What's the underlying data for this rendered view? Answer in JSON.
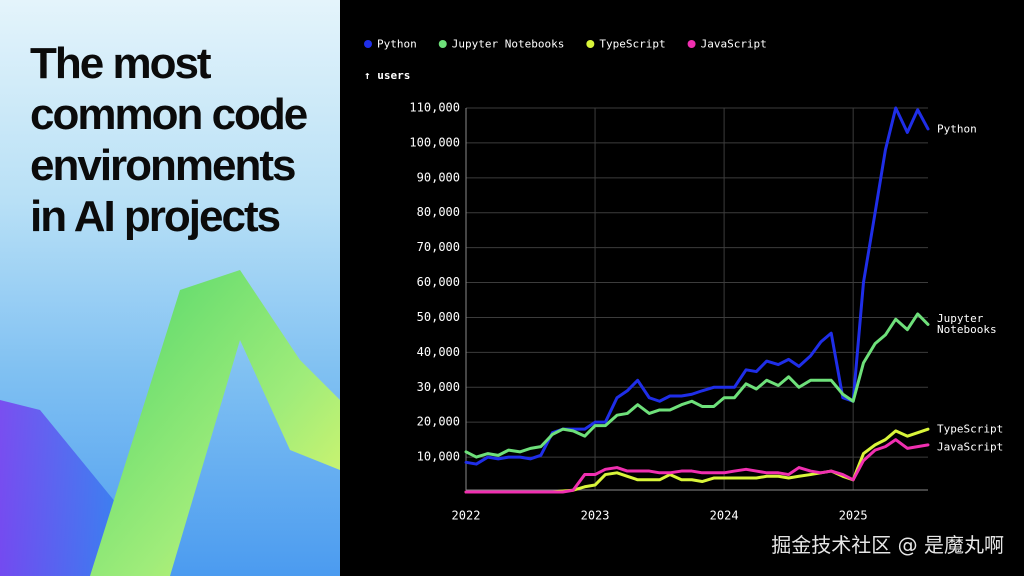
{
  "title": "The most common code environments in AI projects",
  "watermark": "掘金技术社区 @ 是魔丸啊",
  "chart_data": {
    "type": "line",
    "y_label": "↑ users",
    "x": [
      2022,
      2022.08,
      2022.17,
      2022.25,
      2022.33,
      2022.42,
      2022.5,
      2022.58,
      2022.67,
      2022.75,
      2022.83,
      2022.92,
      2023,
      2023.08,
      2023.17,
      2023.25,
      2023.33,
      2023.42,
      2023.5,
      2023.58,
      2023.67,
      2023.75,
      2023.83,
      2023.92,
      2024,
      2024.08,
      2024.17,
      2024.25,
      2024.33,
      2024.42,
      2024.5,
      2024.58,
      2024.67,
      2024.75,
      2024.83,
      2024.92,
      2025,
      2025.08,
      2025.17,
      2025.25,
      2025.33,
      2025.42,
      2025.5,
      2025.58
    ],
    "xlim": [
      2022,
      2025.58
    ],
    "xticks": [
      2022,
      2023,
      2024,
      2025
    ],
    "ylim": [
      0,
      110000
    ],
    "yticks": [
      {
        "value": 10000,
        "label": "10,000"
      },
      {
        "value": 20000,
        "label": "20,000"
      },
      {
        "value": 30000,
        "label": "30,000"
      },
      {
        "value": 40000,
        "label": "40,000"
      },
      {
        "value": 50000,
        "label": "50,000"
      },
      {
        "value": 60000,
        "label": "60,000"
      },
      {
        "value": 70000,
        "label": "70,000"
      },
      {
        "value": 80000,
        "label": "80,000"
      },
      {
        "value": 90000,
        "label": "90,000"
      },
      {
        "value": 100000,
        "label": "100,000"
      },
      {
        "value": 110000,
        "label": "110,000"
      }
    ],
    "grid": true,
    "legend": "top",
    "series": [
      {
        "name": "Python",
        "color": "#1f2ee8",
        "values": [
          8500,
          8000,
          10000,
          9500,
          10000,
          10000,
          9500,
          10500,
          17000,
          18000,
          18000,
          18000,
          20000,
          20000,
          27000,
          29000,
          32000,
          27000,
          26000,
          27500,
          27500,
          28000,
          29000,
          30000,
          30000,
          30000,
          35000,
          34500,
          37500,
          36500,
          38000,
          36000,
          39000,
          43000,
          45500,
          27000,
          26000,
          60000,
          80000,
          98000,
          110000,
          103000,
          109500,
          104000
        ]
      },
      {
        "name": "Jupyter Notebooks",
        "color": "#6ee07a",
        "values": [
          11500,
          10000,
          11000,
          10500,
          12000,
          11500,
          12500,
          13000,
          16500,
          18000,
          17500,
          16000,
          19000,
          19000,
          22000,
          22500,
          25000,
          22500,
          23500,
          23500,
          25000,
          26000,
          24500,
          24500,
          27000,
          27000,
          31000,
          29500,
          32000,
          30500,
          33000,
          30000,
          32000,
          32000,
          32000,
          28000,
          26000,
          37000,
          42500,
          45000,
          49500,
          46500,
          51000,
          48000
        ]
      },
      {
        "name": "TypeScript",
        "color": "#d9f53a",
        "values": [
          0,
          0,
          0,
          0,
          0,
          0,
          0,
          0,
          0,
          300,
          500,
          1500,
          2000,
          5000,
          5500,
          4500,
          3500,
          3500,
          3500,
          5000,
          3500,
          3500,
          3000,
          4000,
          4000,
          4000,
          4000,
          4000,
          4500,
          4500,
          4000,
          4500,
          5000,
          5500,
          6000,
          4500,
          3500,
          11000,
          13500,
          15000,
          17500,
          16000,
          17000,
          18000
        ]
      },
      {
        "name": "JavaScript",
        "color": "#f02fb0",
        "values": [
          0,
          0,
          0,
          0,
          0,
          0,
          0,
          0,
          0,
          0,
          500,
          5000,
          5000,
          6500,
          7000,
          6000,
          6000,
          6000,
          5500,
          5500,
          6000,
          6000,
          5500,
          5500,
          5500,
          6000,
          6500,
          6000,
          5500,
          5500,
          5000,
          7000,
          6000,
          5500,
          6000,
          5000,
          3500,
          9000,
          12000,
          13000,
          15000,
          12500,
          13000,
          13500
        ]
      }
    ]
  }
}
